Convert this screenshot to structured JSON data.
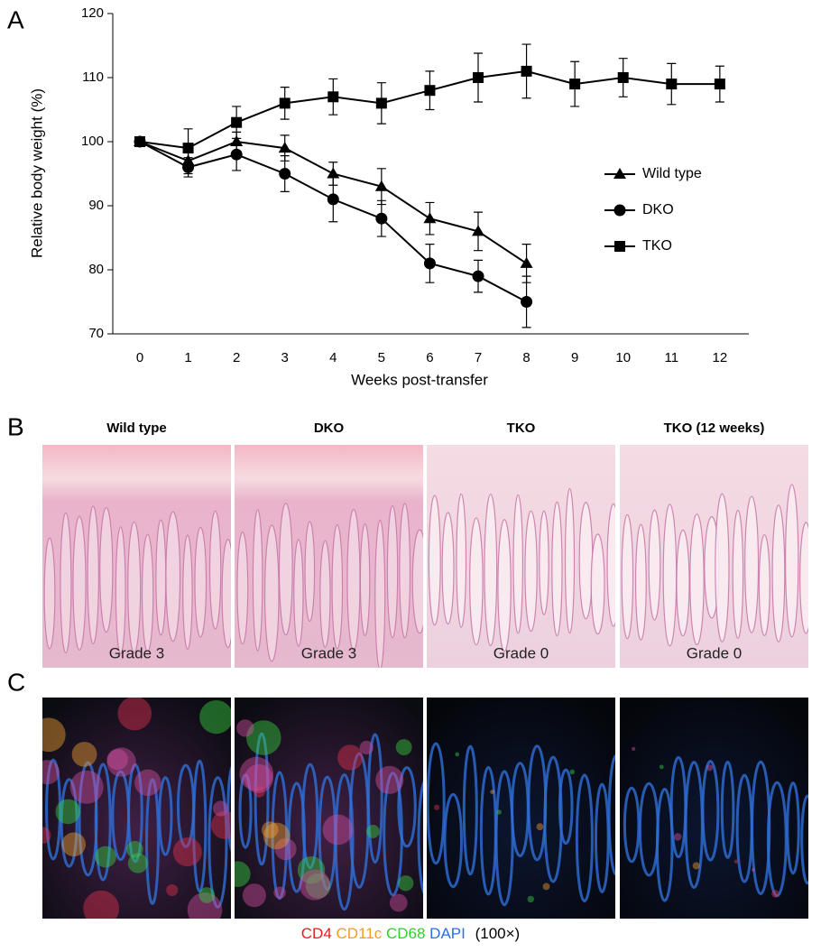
{
  "chart_data": {
    "type": "line",
    "ylabel": "Relative body weight (%)",
    "xlabel": "Weeks post-transfer",
    "x": [
      0,
      1,
      2,
      3,
      4,
      5,
      6,
      7,
      8,
      9,
      10,
      11,
      12
    ],
    "series": [
      {
        "name": "Wild type",
        "color": "#000000",
        "marker": "triangle",
        "values": [
          100,
          97,
          100,
          99,
          95,
          93,
          88,
          86,
          81,
          null,
          null,
          null,
          null
        ],
        "errors": [
          0.5,
          2,
          1.5,
          2,
          1.8,
          2.8,
          2.5,
          3,
          3,
          null,
          null,
          null,
          null
        ]
      },
      {
        "name": "DKO",
        "color": "#000000",
        "marker": "circle",
        "values": [
          100,
          96,
          98,
          95,
          91,
          88,
          81,
          79,
          75,
          null,
          null,
          null,
          null
        ],
        "errors": [
          0.5,
          1.5,
          2.5,
          2.8,
          3.5,
          2.8,
          3,
          2.5,
          4,
          null,
          null,
          null,
          null
        ]
      },
      {
        "name": "TKO",
        "color": "#000000",
        "marker": "square",
        "values": [
          100,
          99,
          103,
          106,
          107,
          106,
          108,
          110,
          111,
          109,
          110,
          109,
          109
        ],
        "errors": [
          0.5,
          3,
          2.5,
          2.5,
          2.8,
          3.2,
          3,
          3.8,
          4.2,
          3.5,
          3,
          3.2,
          2.8
        ]
      }
    ],
    "xlim": [
      -0.56,
      12.6
    ],
    "ylim": [
      70,
      120
    ],
    "xticks": [
      0,
      1,
      2,
      3,
      4,
      5,
      6,
      7,
      8,
      9,
      10,
      11,
      12
    ],
    "yticks": [
      70,
      80,
      90,
      100,
      110,
      120
    ],
    "legend": "right"
  },
  "panel_labels": [
    "A",
    "B",
    "C"
  ],
  "panel_b": {
    "titles": [
      "Wild type",
      "DKO",
      "TKO",
      "TKO (12 weeks)"
    ],
    "grades": [
      "Grade 3",
      "Grade 3",
      "Grade 0",
      "Grade 0"
    ]
  },
  "panel_c": {
    "caption": [
      "CD4",
      "CD11c",
      "CD68",
      "DAPI",
      "(100×)"
    ]
  }
}
